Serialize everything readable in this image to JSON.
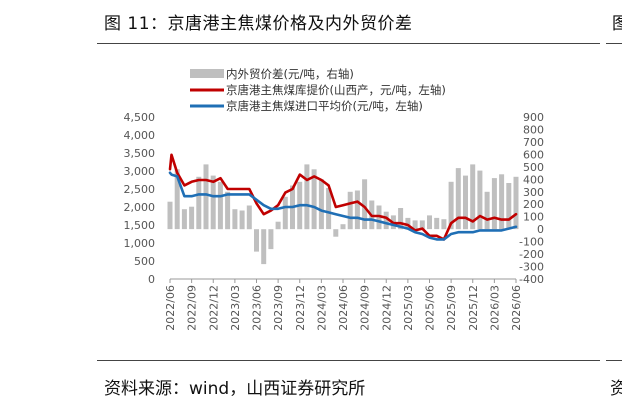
{
  "figure": {
    "title": "图 11：京唐港主焦煤价格及内外贸价差",
    "source": "资料来源：wind，山西证券研究所",
    "edge_title_glyph": "图",
    "edge_source_glyph": "资"
  },
  "chart_data": {
    "type": "bar+line",
    "legend_placement": "top-left",
    "grid": false,
    "x_labels": [
      "2022/06",
      "2022/09",
      "2022/12",
      "2023/03",
      "2023/06",
      "2023/09",
      "2023/12",
      "2024/03",
      "2024/06",
      "2024/09",
      "2024/12",
      "2025/03",
      "2025/06",
      "2025/09",
      "2025/12",
      "2026/03",
      "2026/06"
    ],
    "x_range": [
      "2022/06",
      "2026/06"
    ],
    "left_axis": {
      "ylim": [
        0,
        4500
      ],
      "ticks": [
        "0",
        "500",
        "1,000",
        "1,500",
        "2,000",
        "2,500",
        "3,000",
        "3,500",
        "4,000",
        "4,500"
      ]
    },
    "right_axis": {
      "ylim": [
        -400,
        900
      ],
      "ticks": [
        "-400",
        "-300",
        "-200",
        "-100",
        "0",
        "100",
        "200",
        "300",
        "400",
        "500",
        "600",
        "700",
        "800",
        "900"
      ]
    },
    "series": [
      {
        "name": "内外贸价差(元/吨，右轴)",
        "type": "bar",
        "axis": "right",
        "color": "#bfbfbf",
        "x": [
          "2022/06",
          "2022/07",
          "2022/08",
          "2022/09",
          "2022/10",
          "2022/11",
          "2022/12",
          "2023/01",
          "2023/02",
          "2023/03",
          "2023/04",
          "2023/05",
          "2023/06",
          "2023/07",
          "2023/08",
          "2023/09",
          "2023/10",
          "2023/11",
          "2023/12",
          "2024/01",
          "2024/02",
          "2024/03",
          "2024/04",
          "2024/05",
          "2024/06",
          "2024/07",
          "2024/08",
          "2024/09",
          "2024/10",
          "2024/11",
          "2024/12",
          "2025/01",
          "2025/02",
          "2025/03",
          "2025/04",
          "2025/05",
          "2025/06",
          "2025/07",
          "2025/08",
          "2025/09",
          "2025/10",
          "2025/11",
          "2025/12",
          "2026/01",
          "2026/02",
          "2026/03",
          "2026/04",
          "2026/05",
          "2026/06"
        ],
        "values": [
          220,
          480,
          160,
          180,
          420,
          520,
          430,
          380,
          300,
          160,
          150,
          190,
          -180,
          -280,
          -160,
          60,
          260,
          350,
          380,
          520,
          480,
          400,
          330,
          -60,
          40,
          300,
          310,
          400,
          230,
          190,
          140,
          110,
          170,
          90,
          70,
          70,
          110,
          90,
          80,
          380,
          490,
          430,
          520,
          470,
          300,
          410,
          440,
          370,
          420
        ]
      },
      {
        "name": "京唐港主焦煤库提价(山西产，元/吨，左轴)",
        "type": "line",
        "axis": "left",
        "color": "#c00000",
        "x": [
          "2022/06",
          "2022/06",
          "2022/07",
          "2022/08",
          "2022/09",
          "2022/10",
          "2022/11",
          "2022/12",
          "2023/01",
          "2023/02",
          "2023/03",
          "2023/04",
          "2023/05",
          "2023/06",
          "2023/07",
          "2023/08",
          "2023/09",
          "2023/10",
          "2023/11",
          "2023/12",
          "2024/01",
          "2024/02",
          "2024/03",
          "2024/04",
          "2024/05",
          "2024/06",
          "2024/07",
          "2024/08",
          "2024/09",
          "2024/10",
          "2024/11",
          "2024/12",
          "2025/01",
          "2025/02",
          "2025/03",
          "2025/04",
          "2025/05",
          "2025/06",
          "2025/07",
          "2025/08",
          "2025/09",
          "2025/10",
          "2025/11",
          "2025/12",
          "2026/01",
          "2026/02",
          "2026/03",
          "2026/04",
          "2026/05",
          "2026/06"
        ],
        "values": [
          3050,
          3450,
          2950,
          2600,
          2700,
          2750,
          2750,
          2700,
          2800,
          2500,
          2500,
          2500,
          2500,
          2100,
          1800,
          1900,
          2050,
          2400,
          2500,
          2900,
          2750,
          2850,
          2750,
          2600,
          2000,
          2050,
          2100,
          2150,
          2000,
          1750,
          1750,
          1700,
          1550,
          1550,
          1500,
          1350,
          1400,
          1200,
          1200,
          1100,
          1550,
          1700,
          1700,
          1600,
          1750,
          1650,
          1700,
          1650,
          1650,
          1800
        ]
      },
      {
        "name": "京唐港主焦煤进口平均价(元/吨，左轴)",
        "type": "line",
        "axis": "left",
        "color": "#1f6fb5",
        "x": [
          "2022/06",
          "2022/06",
          "2022/07",
          "2022/08",
          "2022/09",
          "2022/10",
          "2022/11",
          "2022/12",
          "2023/01",
          "2023/02",
          "2023/03",
          "2023/04",
          "2023/05",
          "2023/06",
          "2023/07",
          "2023/08",
          "2023/09",
          "2023/10",
          "2023/11",
          "2023/12",
          "2024/01",
          "2024/02",
          "2024/03",
          "2024/04",
          "2024/05",
          "2024/06",
          "2024/07",
          "2024/08",
          "2024/09",
          "2024/10",
          "2024/11",
          "2024/12",
          "2025/01",
          "2025/02",
          "2025/03",
          "2025/04",
          "2025/05",
          "2025/06",
          "2025/07",
          "2025/08",
          "2025/09",
          "2025/10",
          "2025/11",
          "2025/12",
          "2026/01",
          "2026/02",
          "2026/03",
          "2026/04",
          "2026/05",
          "2026/06"
        ],
        "values": [
          2950,
          2900,
          2850,
          2300,
          2300,
          2350,
          2350,
          2300,
          2300,
          2350,
          2350,
          2350,
          2350,
          2200,
          2050,
          1950,
          1950,
          2000,
          2000,
          2050,
          2050,
          2000,
          1900,
          1850,
          1800,
          1750,
          1700,
          1700,
          1650,
          1650,
          1600,
          1550,
          1500,
          1450,
          1400,
          1300,
          1250,
          1150,
          1100,
          1100,
          1250,
          1300,
          1300,
          1300,
          1350,
          1350,
          1350,
          1350,
          1400,
          1450
        ]
      }
    ]
  }
}
